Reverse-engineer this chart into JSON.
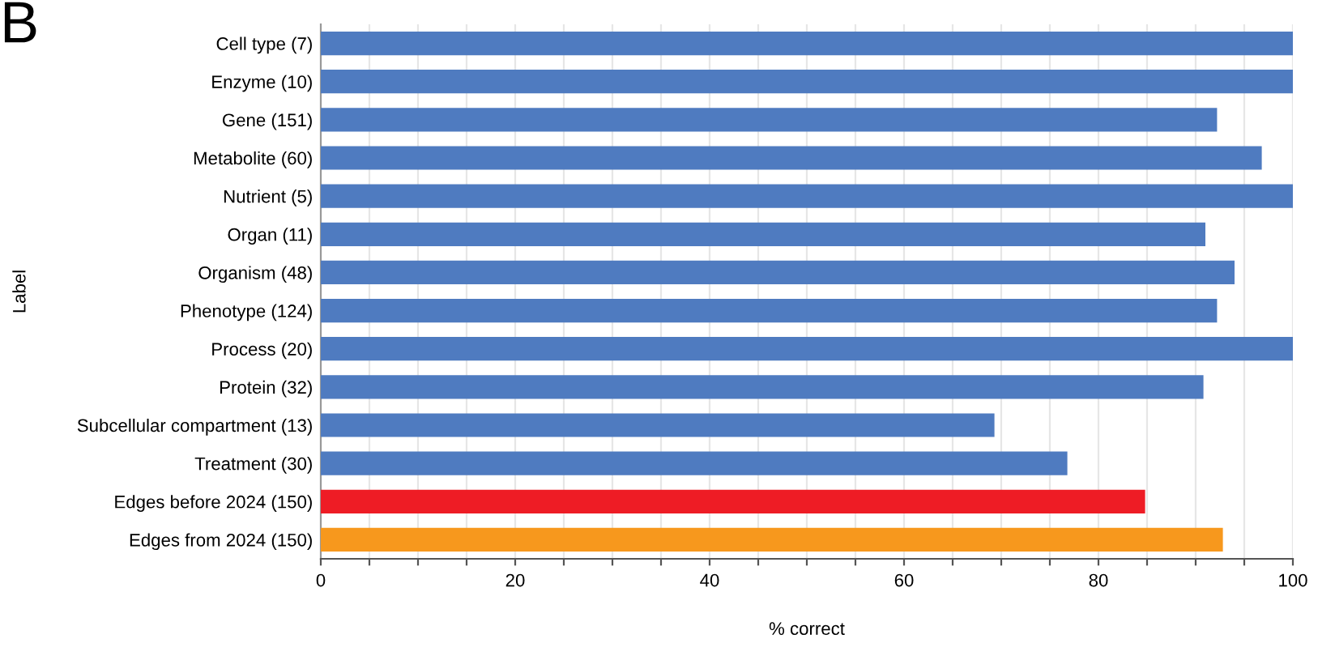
{
  "chart_data": {
    "type": "bar",
    "orientation": "horizontal",
    "categories": [
      "Cell type (7)",
      "Enzyme (10)",
      "Gene (151)",
      "Metabolite (60)",
      "Nutrient (5)",
      "Organ (11)",
      "Organism (48)",
      "Phenotype (124)",
      "Process (20)",
      "Protein (32)",
      "Subcellular compartment (13)",
      "Treatment (30)",
      "Edges before 2024 (150)",
      "Edges from 2024 (150)"
    ],
    "values": [
      100,
      100,
      92.2,
      96.8,
      100,
      91.0,
      94.0,
      92.2,
      100,
      90.8,
      69.3,
      76.8,
      84.8,
      92.8
    ],
    "colors": [
      "#4f7bc0",
      "#4f7bc0",
      "#4f7bc0",
      "#4f7bc0",
      "#4f7bc0",
      "#4f7bc0",
      "#4f7bc0",
      "#4f7bc0",
      "#4f7bc0",
      "#4f7bc0",
      "#4f7bc0",
      "#4f7bc0",
      "#ee1c25",
      "#f7981d"
    ],
    "xlabel": "% correct",
    "ylabel": "Label",
    "xlim": [
      0,
      100
    ],
    "xticks": [
      0,
      {
        "value": 5,
        "label": null
      },
      {
        "value": 10,
        "label": null
      },
      {
        "value": 15,
        "label": null
      },
      20,
      {
        "value": 25,
        "label": null
      },
      {
        "value": 30,
        "label": null
      },
      {
        "value": 35,
        "label": null
      },
      40,
      {
        "value": 45,
        "label": null
      },
      {
        "value": 50,
        "label": null
      },
      {
        "value": 55,
        "label": null
      },
      60,
      {
        "value": 65,
        "label": null
      },
      {
        "value": 70,
        "label": null
      },
      {
        "value": 75,
        "label": null
      },
      80,
      {
        "value": 85,
        "label": null
      },
      {
        "value": 90,
        "label": null
      },
      {
        "value": 95,
        "label": null
      },
      100
    ],
    "grid": "x",
    "legend": false,
    "annotations": [
      "B"
    ]
  }
}
